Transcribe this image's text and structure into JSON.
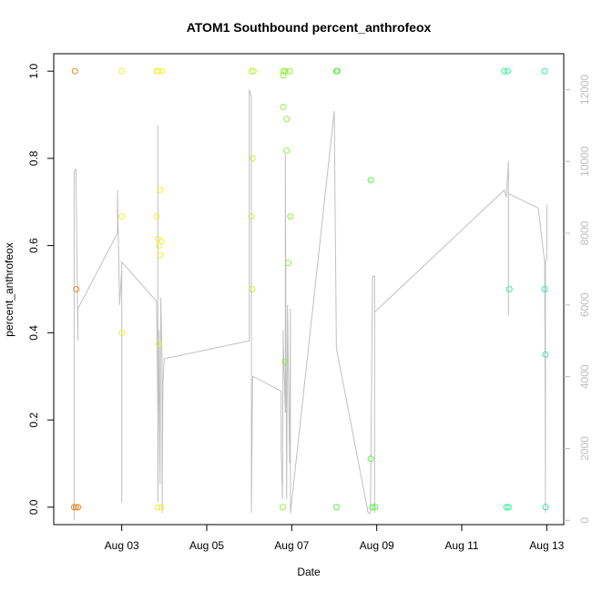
{
  "chart_data": {
    "type": "scatter",
    "title": "ATOM1 Southbound percent_anthrofeox",
    "xlabel": "Date",
    "ylabel": "percent_anthrofeox",
    "x_ticks": [
      "Aug 03",
      "Aug 05",
      "Aug 07",
      "Aug 09",
      "Aug 11",
      "Aug 13"
    ],
    "x_tick_days": [
      3,
      5,
      7,
      9,
      11,
      13
    ],
    "xlim_days": [
      1.4,
      13.4
    ],
    "ylim": [
      -0.04,
      1.04
    ],
    "y_ticks": [
      "0.0",
      "0.2",
      "0.4",
      "0.6",
      "0.8",
      "1.0"
    ],
    "y_tick_values": [
      0,
      0.2,
      0.4,
      0.6,
      0.8,
      1.0
    ],
    "secondary_y_ticks": [
      "0",
      "2000",
      "4000",
      "6000",
      "8000",
      "10000",
      "12000"
    ],
    "secondary_y_tick_values": [
      0,
      2000,
      4000,
      6000,
      8000,
      10000,
      12000
    ],
    "secondary_ylim": [
      -120,
      13000
    ],
    "grid": false,
    "point_series": [
      {
        "color": "#e8892e",
        "points": [
          [
            1.9,
            1.0
          ],
          [
            1.93,
            0.5
          ],
          [
            1.88,
            0.0
          ],
          [
            1.92,
            0.0
          ],
          [
            1.97,
            0.0
          ]
        ]
      },
      {
        "color": "#f2ee3a",
        "points": [
          [
            3.0,
            1.0
          ],
          [
            3.0,
            0.667
          ],
          [
            3.0,
            0.4
          ],
          [
            3.82,
            1.0
          ],
          [
            3.86,
            1.0
          ],
          [
            3.95,
            1.0
          ],
          [
            3.82,
            0.667
          ],
          [
            3.85,
            0.615
          ],
          [
            3.88,
            0.6
          ],
          [
            3.93,
            0.61
          ],
          [
            3.9,
            0.728
          ],
          [
            3.9,
            0.578
          ],
          [
            3.87,
            0.375
          ],
          [
            3.85,
            0.0
          ],
          [
            3.93,
            0.0
          ]
        ]
      },
      {
        "color": "#c6ef3c",
        "points": [
          [
            6.05,
            1.0
          ],
          [
            6.1,
            1.0
          ],
          [
            6.05,
            0.667
          ],
          [
            6.08,
            0.8
          ],
          [
            6.07,
            0.5
          ]
        ]
      },
      {
        "color": "#8ef03e",
        "points": [
          [
            6.8,
            1.0
          ],
          [
            6.85,
            1.0
          ],
          [
            6.95,
            1.0
          ],
          [
            6.8,
            0.99
          ],
          [
            6.8,
            0.918
          ],
          [
            6.88,
            0.89
          ],
          [
            6.88,
            0.818
          ],
          [
            6.97,
            0.667
          ],
          [
            6.92,
            0.56
          ],
          [
            6.84,
            0.333
          ],
          [
            6.79,
            0.0
          ]
        ]
      },
      {
        "color": "#5ef04a",
        "points": [
          [
            8.05,
            1.0
          ],
          [
            8.07,
            1.0
          ],
          [
            8.86,
            0.75
          ],
          [
            8.86,
            0.111
          ],
          [
            8.05,
            0.0
          ],
          [
            8.9,
            0.0
          ],
          [
            8.96,
            0.0
          ]
        ]
      },
      {
        "color": "#3ef09a",
        "points": [
          [
            12.0,
            1.0
          ],
          [
            12.08,
            1.0
          ],
          [
            12.05,
            0.0
          ],
          [
            12.1,
            0.0
          ],
          [
            12.12,
            0.5
          ]
        ]
      },
      {
        "color": "#32e6bd",
        "points": [
          [
            12.95,
            1.0
          ],
          [
            12.95,
            0.5
          ],
          [
            12.97,
            0.35
          ],
          [
            12.97,
            0.0
          ]
        ]
      }
    ],
    "line_series": {
      "color": "#c0c0c0",
      "axis": "secondary",
      "points": [
        [
          1.88,
          0
        ],
        [
          1.88,
          9700
        ],
        [
          1.92,
          9800
        ],
        [
          1.97,
          5000
        ],
        [
          1.97,
          5900
        ],
        [
          2.9,
          8000
        ],
        [
          2.9,
          9200
        ],
        [
          2.95,
          6000
        ],
        [
          3.0,
          7000
        ],
        [
          3.0,
          500
        ],
        [
          3.0,
          5500
        ],
        [
          3.0,
          7200
        ],
        [
          3.82,
          6100
        ],
        [
          3.85,
          3000
        ],
        [
          3.85,
          11000
        ],
        [
          3.85,
          500
        ],
        [
          3.88,
          5300
        ],
        [
          3.9,
          1000
        ],
        [
          3.92,
          6200
        ],
        [
          3.95,
          4400
        ],
        [
          3.95,
          4100
        ],
        [
          3.95,
          200
        ],
        [
          3.97,
          3800
        ],
        [
          4.0,
          4500
        ],
        [
          6.0,
          5000
        ],
        [
          6.0,
          12000
        ],
        [
          6.05,
          11800
        ],
        [
          6.05,
          200
        ],
        [
          6.08,
          4000
        ],
        [
          6.1,
          4000
        ],
        [
          6.75,
          3600
        ],
        [
          6.75,
          2000
        ],
        [
          6.78,
          600
        ],
        [
          6.8,
          5300
        ],
        [
          6.8,
          5000
        ],
        [
          6.85,
          3000
        ],
        [
          6.85,
          10200
        ],
        [
          6.88,
          600
        ],
        [
          6.9,
          5800
        ],
        [
          6.9,
          6000
        ],
        [
          6.95,
          1600
        ],
        [
          6.97,
          5900
        ],
        [
          6.97,
          200
        ],
        [
          8.0,
          11400
        ],
        [
          8.05,
          5000
        ],
        [
          8.05,
          4800
        ],
        [
          8.8,
          200
        ],
        [
          8.85,
          200
        ],
        [
          8.9,
          6800
        ],
        [
          8.95,
          6800
        ],
        [
          8.95,
          200
        ],
        [
          8.95,
          5800
        ],
        [
          12.0,
          9200
        ],
        [
          12.05,
          9000
        ],
        [
          12.1,
          10000
        ],
        [
          12.1,
          5700
        ],
        [
          12.1,
          9100
        ],
        [
          12.8,
          8700
        ],
        [
          12.95,
          7200
        ],
        [
          12.97,
          800
        ],
        [
          12.97,
          200
        ],
        [
          12.97,
          7200
        ],
        [
          13.0,
          7300
        ],
        [
          13.0,
          8800
        ]
      ]
    }
  }
}
